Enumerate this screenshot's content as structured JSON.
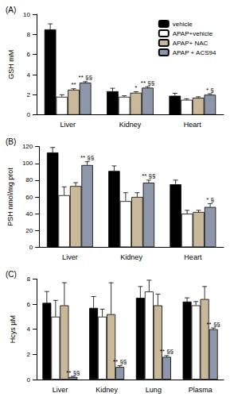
{
  "chart_data": [
    {
      "type": "bar",
      "title": "(A)",
      "y_label": "GSH mM",
      "categories": [
        "Liver",
        "Kidney",
        "Heart"
      ],
      "ylim": [
        0,
        10
      ],
      "yticks": [
        0,
        2,
        4,
        6,
        8,
        10
      ],
      "legend": "upper right",
      "series": [
        {
          "name": "vehicle",
          "color": "#000000",
          "values": [
            8.5,
            2.35,
            1.9
          ],
          "errors": [
            0.55,
            0.3,
            0.25
          ],
          "annotations": [
            null,
            null,
            null
          ]
        },
        {
          "name": "APAP+vehicle",
          "color": "#ffffff",
          "values": [
            1.8,
            1.8,
            1.5
          ],
          "errors": [
            0.2,
            0.1,
            0.1
          ],
          "annotations": [
            null,
            null,
            null
          ]
        },
        {
          "name": "APAP+ NAC",
          "color": "#c9b99a",
          "values": [
            2.5,
            2.2,
            1.7
          ],
          "errors": [
            0.1,
            0.1,
            0.1
          ],
          "annotations": [
            "**",
            "*",
            null
          ]
        },
        {
          "name": "APAP + ACS94",
          "color": "#8e97a9",
          "values": [
            3.2,
            2.7,
            2.0
          ],
          "errors": [
            0.1,
            0.1,
            0.1
          ],
          "annotations": [
            "** §§",
            "** §§",
            "* §"
          ]
        }
      ]
    },
    {
      "type": "bar",
      "title": "(B)",
      "y_label": "PSH nmol/mg prot",
      "categories": [
        "Liver",
        "Kidney",
        "Heart"
      ],
      "ylim": [
        0,
        120
      ],
      "yticks": [
        0,
        20,
        40,
        60,
        80,
        100,
        120
      ],
      "series": [
        {
          "color": "#000000",
          "values": [
            113,
            91,
            75
          ],
          "errors": [
            6,
            6,
            5
          ],
          "annotations": [
            null,
            null,
            null
          ]
        },
        {
          "color": "#ffffff",
          "values": [
            62,
            55,
            40
          ],
          "errors": [
            10,
            10,
            4
          ],
          "annotations": [
            null,
            null,
            null
          ]
        },
        {
          "color": "#c9b99a",
          "values": [
            73,
            60,
            42
          ],
          "errors": [
            4,
            5,
            2
          ],
          "annotations": [
            null,
            null,
            null
          ]
        },
        {
          "color": "#8e97a9",
          "values": [
            98,
            77,
            48
          ],
          "errors": [
            4,
            3,
            4
          ],
          "annotations": [
            "** §§",
            "** §§",
            "* §"
          ]
        }
      ]
    },
    {
      "type": "bar",
      "title": "(C)",
      "y_label": "Hcys µM",
      "categories": [
        "Liver",
        "Kidney",
        "Lung",
        "Plasma"
      ],
      "ylim": [
        0,
        8
      ],
      "yticks": [
        0,
        2,
        4,
        6,
        8
      ],
      "series": [
        {
          "color": "#000000",
          "values": [
            6.1,
            5.7,
            6.5,
            6.2
          ],
          "errors": [
            0.9,
            0.9,
            0.9,
            0.3
          ],
          "annotations": [
            null,
            null,
            null,
            null
          ]
        },
        {
          "color": "#ffffff",
          "values": [
            5.0,
            5.0,
            7.0,
            5.9
          ],
          "errors": [
            1.3,
            0.6,
            0.9,
            0.3
          ],
          "annotations": [
            null,
            null,
            null,
            null
          ]
        },
        {
          "color": "#c9b99a",
          "values": [
            5.9,
            5.2,
            5.9,
            6.4
          ],
          "errors": [
            1.8,
            2.5,
            0.9,
            1.0
          ],
          "annotations": [
            null,
            null,
            null,
            null
          ]
        },
        {
          "color": "#8e97a9",
          "values": [
            0.2,
            1.0,
            1.8,
            4.0
          ],
          "errors": [
            0.05,
            0.1,
            0.1,
            0.1
          ],
          "annotations": [
            "** §§",
            "** §§",
            "** §§",
            "** §§"
          ]
        }
      ]
    }
  ]
}
